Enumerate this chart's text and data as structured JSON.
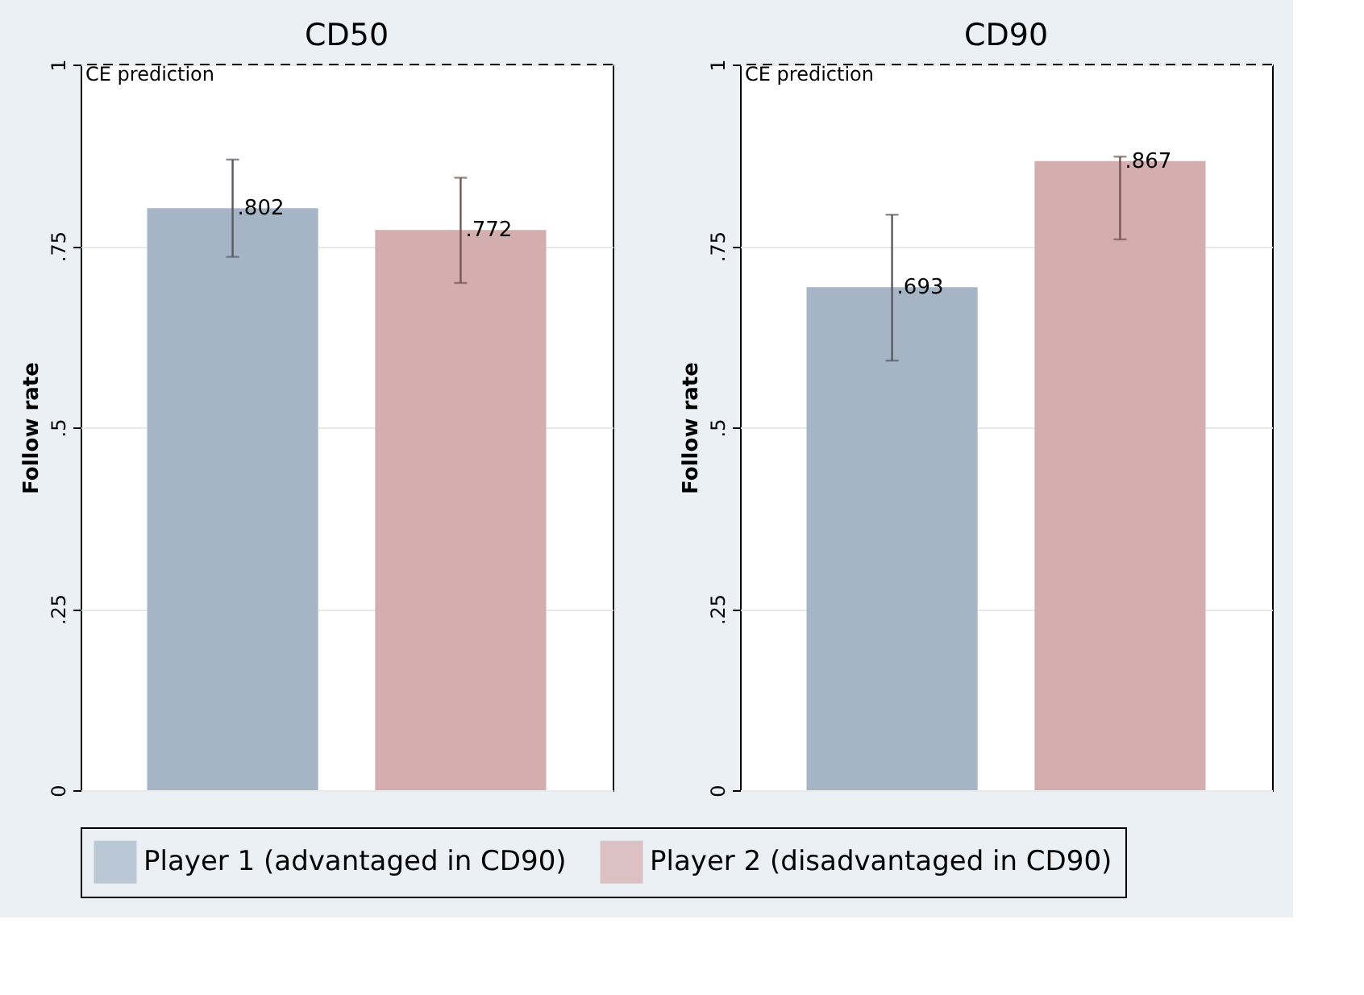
{
  "chart_data": [
    {
      "type": "bar",
      "title": "CD50",
      "ylabel": "Follow rate",
      "categories": [
        null
      ],
      "ylim": [
        0,
        1
      ],
      "yticks": [
        0,
        {
          "value": 0.25,
          "label": ".25"
        },
        {
          "value": 0.5,
          "label": ".5"
        },
        {
          "value": 0.75,
          "label": ".75"
        },
        1
      ],
      "grid": "y",
      "legend": "bottom",
      "series": [
        {
          "name": "Player 1 (advantaged in CD90)",
          "color": "#a5b5c6",
          "values": [
            0.802
          ],
          "errors": [
            [
              0.735,
              0.869
            ]
          ],
          "value_labels": [
            ".802"
          ]
        },
        {
          "name": "Player 2 (disadvantaged in CD90)",
          "color": "#d4adae",
          "values": [
            0.772
          ],
          "errors": [
            [
              0.699,
              0.844
            ]
          ],
          "value_labels": [
            ".772"
          ]
        }
      ],
      "ref_lines": [
        {
          "axis": "y",
          "value": 1,
          "label": "CE prediction",
          "line_style": "dashed",
          "color": "#000000"
        }
      ]
    },
    {
      "type": "bar",
      "title": "CD90",
      "ylabel": "Follow rate",
      "categories": [
        null
      ],
      "ylim": [
        0,
        1
      ],
      "yticks": [
        0,
        {
          "value": 0.25,
          "label": ".25"
        },
        {
          "value": 0.5,
          "label": ".5"
        },
        {
          "value": 0.75,
          "label": ".75"
        },
        1
      ],
      "grid": "y",
      "series": [
        {
          "name": "Player 1 (advantaged in CD90)",
          "color": "#a5b5c6",
          "values": [
            0.693
          ],
          "errors": [
            [
              0.592,
              0.793
            ]
          ],
          "value_labels": [
            ".693"
          ]
        },
        {
          "name": "Player 2 (disadvantaged in CD90)",
          "color": "#d4adae",
          "values": [
            0.867
          ],
          "errors": [
            [
              0.759,
              0.873
            ]
          ],
          "value_labels": [
            ".867"
          ]
        }
      ],
      "ref_lines": [
        {
          "axis": "y",
          "value": 1,
          "label": "CE prediction",
          "line_style": "dashed",
          "color": "#000000"
        }
      ]
    }
  ]
}
